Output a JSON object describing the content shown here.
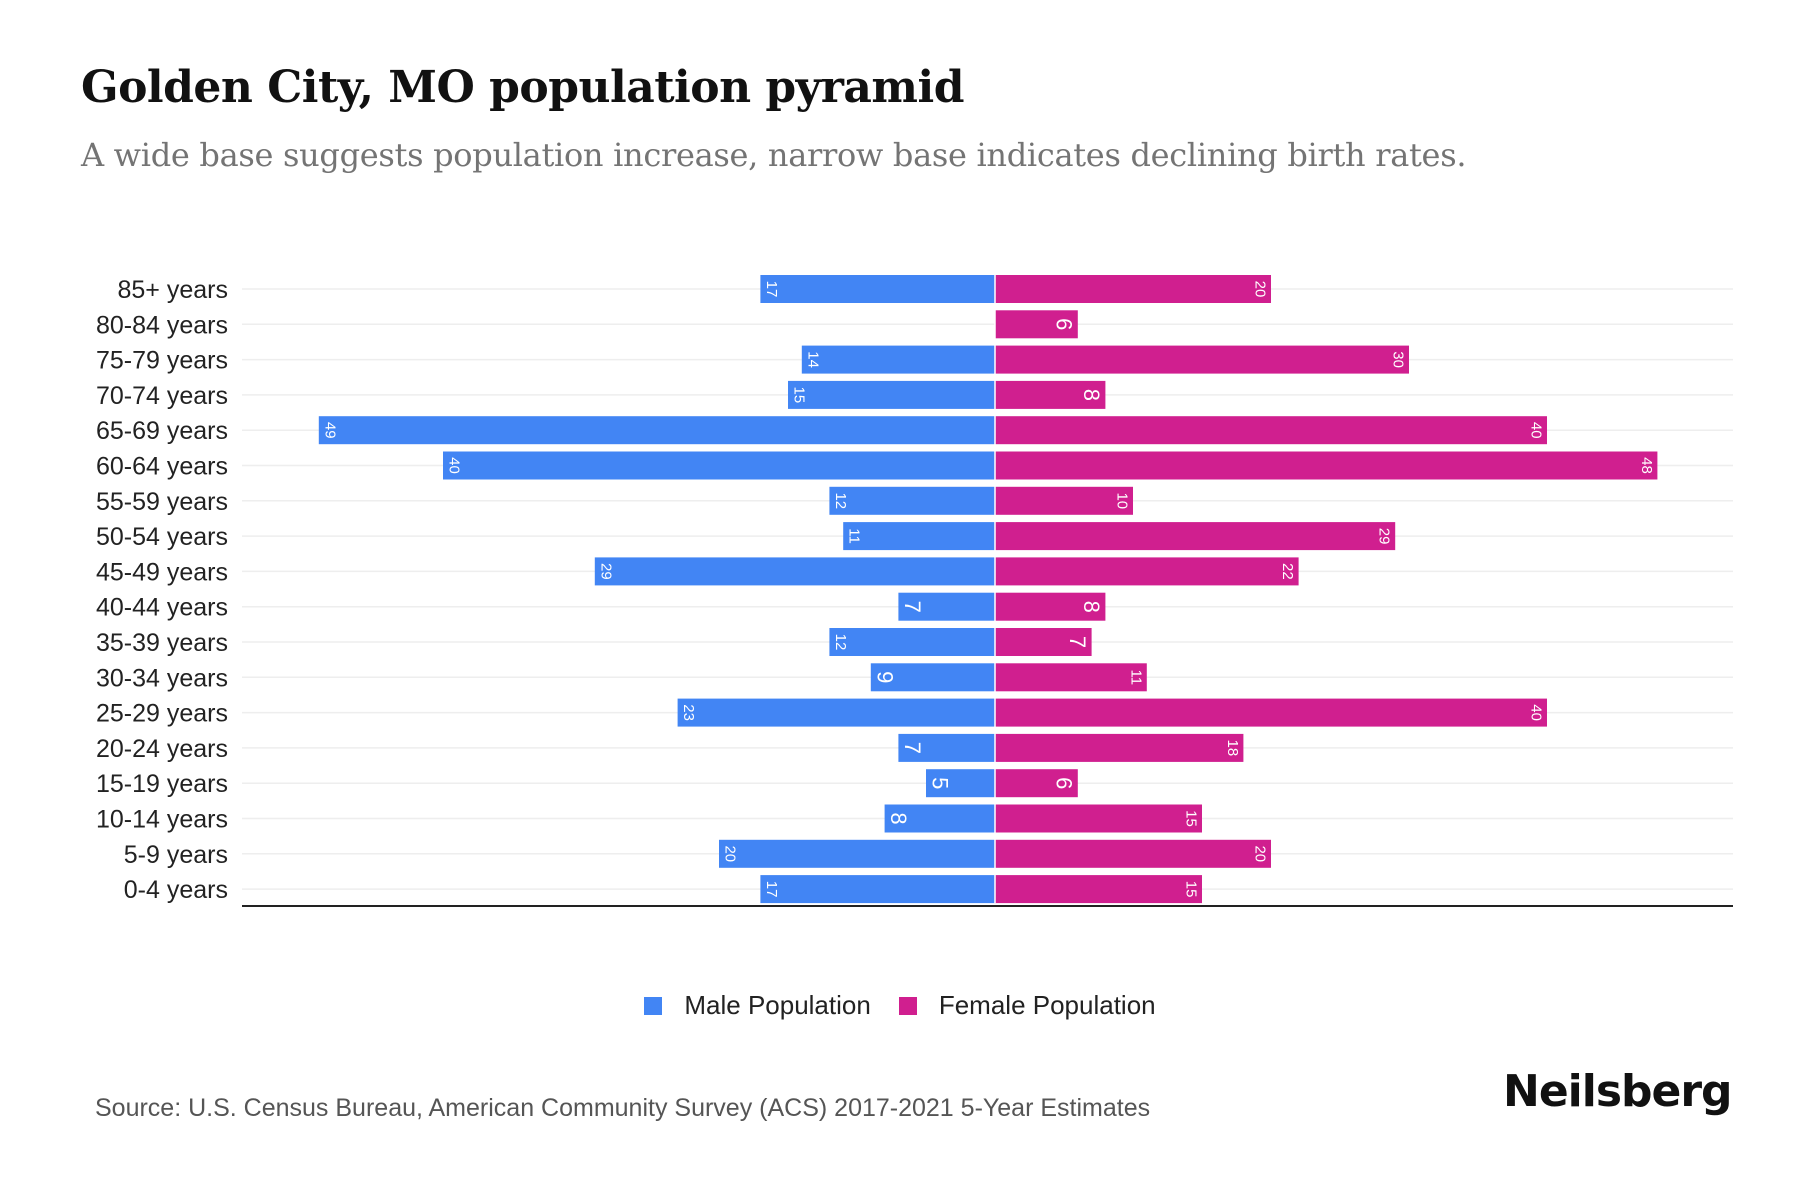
{
  "header": {
    "title": "Golden City, MO population pyramid",
    "subtitle": "A wide base suggests population increase, narrow base indicates declining birth rates."
  },
  "colors": {
    "male": "#4285f4",
    "female": "#d01f8f",
    "grid": "#eeeeee",
    "axis": "#222222"
  },
  "legend": {
    "male_label": "Male Population",
    "female_label": "Female Population",
    "placement": "bottom-center"
  },
  "footer": {
    "source": "Source: U.S. Census Bureau, American Community Survey (ACS) 2017-2021 5-Year Estimates",
    "brand": "Neilsberg"
  },
  "chart_data": {
    "type": "bar",
    "orientation": "horizontal-diverging",
    "title": "Golden City, MO population pyramid",
    "subtitle": "A wide base suggests population increase, narrow base indicates declining birth rates.",
    "xlabel": "",
    "ylabel": "",
    "grid": true,
    "legend_position": "bottom",
    "categories": [
      "85+ years",
      "80-84 years",
      "75-79 years",
      "70-74 years",
      "65-69 years",
      "60-64 years",
      "55-59 years",
      "50-54 years",
      "45-49 years",
      "40-44 years",
      "35-39 years",
      "30-34 years",
      "25-29 years",
      "20-24 years",
      "15-19 years",
      "10-14 years",
      "5-9 years",
      "0-4 years"
    ],
    "series": [
      {
        "name": "Male Population",
        "values": [
          17,
          0,
          14,
          15,
          49,
          40,
          12,
          11,
          29,
          7,
          12,
          9,
          23,
          7,
          5,
          8,
          20,
          17
        ]
      },
      {
        "name": "Female Population",
        "values": [
          20,
          6,
          30,
          8,
          40,
          48,
          10,
          29,
          22,
          8,
          7,
          11,
          40,
          18,
          6,
          15,
          20,
          15
        ]
      }
    ],
    "xlim": [
      -54,
      54
    ]
  }
}
